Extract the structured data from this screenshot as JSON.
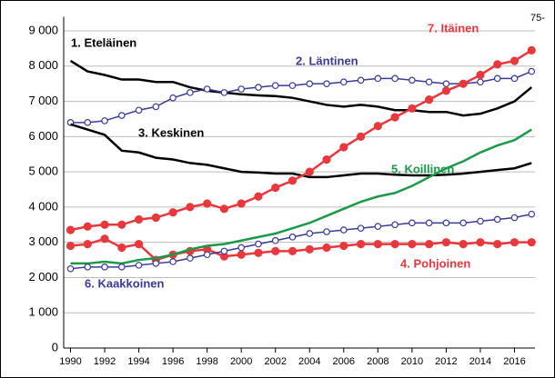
{
  "chart_data": {
    "type": "line",
    "annotation": "75-",
    "x": [
      1990,
      1991,
      1992,
      1993,
      1994,
      1995,
      1996,
      1997,
      1998,
      1999,
      2000,
      2001,
      2002,
      2003,
      2004,
      2005,
      2006,
      2007,
      2008,
      2009,
      2010,
      2011,
      2012,
      2013,
      2014,
      2015,
      2016,
      2017
    ],
    "xlim": [
      1989.6,
      2017.2
    ],
    "xticks": [
      1990,
      1992,
      1994,
      1996,
      1998,
      2000,
      2002,
      2004,
      2006,
      2008,
      2010,
      2012,
      2014,
      2016
    ],
    "ylim": [
      0,
      9400
    ],
    "yticks": [
      0,
      {
        "value": 1000,
        "label": "1 000"
      },
      {
        "value": 2000,
        "label": "2 000"
      },
      {
        "value": 3000,
        "label": "3 000"
      },
      {
        "value": 4000,
        "label": "4 000"
      },
      {
        "value": 5000,
        "label": "5 000"
      },
      {
        "value": 6000,
        "label": "6 000"
      },
      {
        "value": 7000,
        "label": "7 000"
      },
      {
        "value": 8000,
        "label": "8 000"
      },
      {
        "value": 9000,
        "label": "9 000"
      }
    ],
    "grid": true,
    "series": [
      {
        "name": "1. Eteläinen",
        "color": "#000000",
        "marker": "none",
        "values": [
          8150,
          7850,
          7750,
          7620,
          7620,
          7550,
          7550,
          7400,
          7300,
          7250,
          7200,
          7170,
          7150,
          7100,
          7000,
          6900,
          6850,
          6900,
          6850,
          6750,
          6750,
          6700,
          6700,
          6600,
          6650,
          6800,
          7000,
          7400
        ]
      },
      {
        "name": "2. Läntinen",
        "color": "#3a3a9a",
        "marker": "open",
        "values": [
          6400,
          6400,
          6450,
          6600,
          6750,
          6850,
          7100,
          7250,
          7350,
          7250,
          7350,
          7400,
          7450,
          7450,
          7500,
          7500,
          7550,
          7600,
          7650,
          7650,
          7600,
          7550,
          7500,
          7500,
          7550,
          7650,
          7650,
          7850
        ]
      },
      {
        "name": "3. Keskinen",
        "color": "#000000",
        "marker": "none",
        "values": [
          6350,
          6200,
          6050,
          5600,
          5550,
          5400,
          5350,
          5250,
          5200,
          5100,
          5000,
          4980,
          4950,
          4950,
          4850,
          4850,
          4900,
          4950,
          4950,
          4920,
          4900,
          4900,
          4920,
          4950,
          5000,
          5050,
          5100,
          5250
        ]
      },
      {
        "name": "4. Pohjoinen",
        "color": "#e8383d",
        "marker": "filled",
        "values": [
          2900,
          2950,
          3100,
          2850,
          2950,
          2500,
          2650,
          2750,
          2800,
          2600,
          2650,
          2700,
          2750,
          2750,
          2800,
          2850,
          2900,
          2950,
          2950,
          2950,
          2950,
          2950,
          3000,
          2950,
          3000,
          2950,
          3000,
          3000
        ]
      },
      {
        "name": "5. Koillinen",
        "color": "#1a9a48",
        "marker": "none",
        "values": [
          2400,
          2400,
          2450,
          2400,
          2500,
          2550,
          2650,
          2800,
          2900,
          2950,
          3050,
          3150,
          3250,
          3400,
          3550,
          3750,
          3950,
          4150,
          4300,
          4400,
          4600,
          4850,
          5100,
          5300,
          5550,
          5750,
          5900,
          6200
        ]
      },
      {
        "name": "6. Kaakkoinen",
        "color": "#3a3a9a",
        "marker": "open",
        "values": [
          2250,
          2300,
          2300,
          2300,
          2350,
          2400,
          2450,
          2550,
          2650,
          2750,
          2850,
          2950,
          3050,
          3150,
          3250,
          3300,
          3350,
          3400,
          3450,
          3500,
          3550,
          3550,
          3550,
          3550,
          3600,
          3650,
          3700,
          3800
        ]
      },
      {
        "name": "7. Itäinen",
        "color": "#e8383d",
        "marker": "filled",
        "values": [
          3350,
          3450,
          3500,
          3500,
          3650,
          3700,
          3850,
          4000,
          4100,
          3950,
          4100,
          4300,
          4550,
          4750,
          5000,
          5350,
          5700,
          6000,
          6300,
          6550,
          6800,
          7050,
          7300,
          7500,
          7750,
          8050,
          8150,
          8450
        ]
      }
    ]
  }
}
